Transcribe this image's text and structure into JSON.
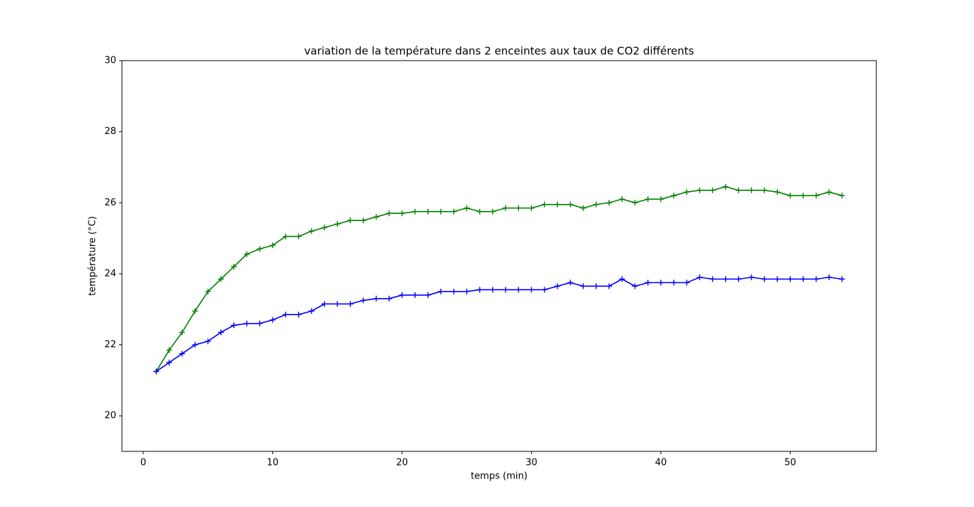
{
  "chart_data": {
    "type": "line",
    "title": "variation de la température dans 2 enceintes aux taux de CO2 différents",
    "x_label": "temps (min)",
    "y_label": "température (°C)",
    "x": [
      1,
      2,
      3,
      4,
      5,
      6,
      7,
      8,
      9,
      10,
      11,
      12,
      13,
      14,
      15,
      16,
      17,
      18,
      19,
      20,
      21,
      22,
      23,
      24,
      25,
      26,
      27,
      28,
      29,
      30,
      31,
      32,
      33,
      34,
      35,
      36,
      37,
      38,
      39,
      40,
      41,
      42,
      43,
      44,
      45,
      46,
      47,
      48,
      49,
      50,
      51,
      52,
      53,
      54
    ],
    "series": [
      {
        "color": "#008000",
        "marker": "+",
        "values": [
          21.25,
          21.85,
          22.35,
          22.95,
          23.5,
          23.85,
          24.2,
          24.55,
          24.7,
          24.8,
          25.05,
          25.05,
          25.2,
          25.3,
          25.4,
          25.5,
          25.5,
          25.6,
          25.7,
          25.7,
          25.75,
          25.75,
          25.75,
          25.75,
          25.85,
          25.75,
          25.75,
          25.85,
          25.85,
          25.85,
          25.95,
          25.95,
          25.95,
          25.85,
          25.95,
          26.0,
          26.1,
          26.0,
          26.1,
          26.1,
          26.2,
          26.3,
          26.35,
          26.35,
          26.45,
          26.35,
          26.35,
          26.35,
          26.3,
          26.2,
          26.2,
          26.2,
          26.3,
          26.2
        ]
      },
      {
        "color": "#0000ff",
        "marker": "+",
        "values": [
          21.25,
          21.5,
          21.75,
          22.0,
          22.1,
          22.35,
          22.55,
          22.6,
          22.6,
          22.7,
          22.85,
          22.85,
          22.95,
          23.15,
          23.15,
          23.15,
          23.25,
          23.3,
          23.3,
          23.4,
          23.4,
          23.4,
          23.5,
          23.5,
          23.5,
          23.55,
          23.55,
          23.55,
          23.55,
          23.55,
          23.55,
          23.65,
          23.75,
          23.65,
          23.65,
          23.65,
          23.85,
          23.65,
          23.75,
          23.75,
          23.75,
          23.75,
          23.9,
          23.85,
          23.85,
          23.85,
          23.9,
          23.85,
          23.85,
          23.85,
          23.85,
          23.85,
          23.9,
          23.85
        ]
      }
    ],
    "xlim": [
      -1.65,
      56.65
    ],
    "xticks": [
      0,
      10,
      20,
      30,
      40,
      50
    ],
    "ylim": [
      19,
      30
    ],
    "yticks": [
      20,
      22,
      24,
      26,
      28,
      30
    ],
    "grid": false
  }
}
